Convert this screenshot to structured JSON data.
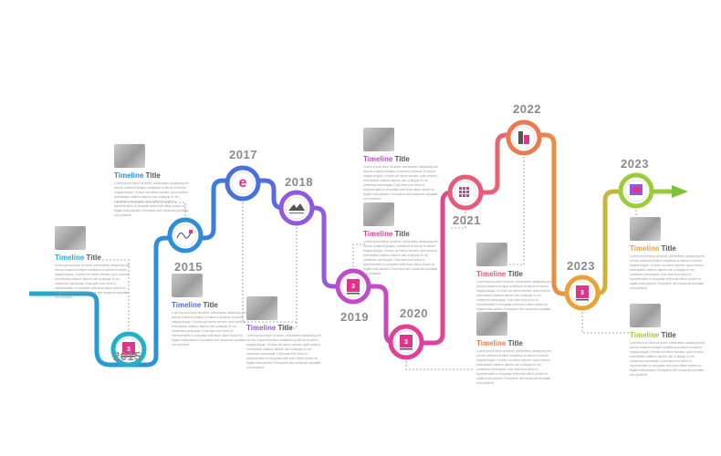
{
  "milestones": [
    {
      "year": "2015",
      "color": "#1fb2c7",
      "logo": "hotel-logo",
      "logo_text": "3"
    },
    {
      "year": "2015",
      "color": "#2d8fd8",
      "logo": "signature-logo",
      "logo_text": ""
    },
    {
      "year": "2017",
      "color": "#4a6fe0",
      "logo": "e-letter-logo",
      "logo_text": "e"
    },
    {
      "year": "2018",
      "color": "#8e5be0",
      "logo": "mountain-logo",
      "logo_text": ""
    },
    {
      "year": "2019",
      "color": "#c04cc8",
      "logo": "hotel-logo",
      "logo_text": "3"
    },
    {
      "year": "2020",
      "color": "#e0409a",
      "logo": "hotel-logo",
      "logo_text": "3"
    },
    {
      "year": "2021",
      "color": "#e85a7a",
      "logo": "grid-logo",
      "logo_text": ""
    },
    {
      "year": "2022",
      "color": "#ec7a50",
      "logo": "building-logo",
      "logo_text": ""
    },
    {
      "year": "2023",
      "color": "#e9a237",
      "logo": "hotel-logo",
      "logo_text": "3"
    },
    {
      "year": "2023",
      "color": "#9ccc3c",
      "logo": "box-logo",
      "logo_text": ""
    }
  ],
  "cards": [
    {
      "title_main": "Timeline",
      "title_rest": " Title",
      "color": "#1fb2c7"
    },
    {
      "title_main": "Timeline",
      "title_rest": " Title",
      "color": "#2d8fd8"
    },
    {
      "title_main": "Timeline",
      "title_rest": " Title",
      "color": "#4a6fe0"
    },
    {
      "title_main": "Timeline",
      "title_rest": " Title",
      "color": "#8e5be0"
    },
    {
      "title_main": "Timeline",
      "title_rest": " Title",
      "color": "#c04cc8"
    },
    {
      "title_main": "Timeline",
      "title_rest": " Title",
      "color": "#e0409a"
    },
    {
      "title_main": "Timeline",
      "title_rest": " Title",
      "color": "#e85a7a"
    },
    {
      "title_main": "Timeline",
      "title_rest": " Title",
      "color": "#ec7a50"
    },
    {
      "title_main": "Timeline",
      "title_rest": " Title",
      "color": "#e9a237"
    },
    {
      "title_main": "Timeline",
      "title_rest": " Title",
      "color": "#9ccc3c"
    }
  ],
  "placeholder_text": "Lorem ipsum dolor sit amet, consectetur adipiscing elit, sed do eiusmod tempor incididunt ut labore et dolore magna aliqua. Ut enim ad minim veniam, quis nostrud exercitation ullamco laboris nisi ut aliquip ex ea commodo consequat. Duis aute irure dolor in reprehenderit in voluptate velit esse cillum dolore eu fugiat nulla pariatur. Excepteur sint occaecat cupidatat non proident."
}
